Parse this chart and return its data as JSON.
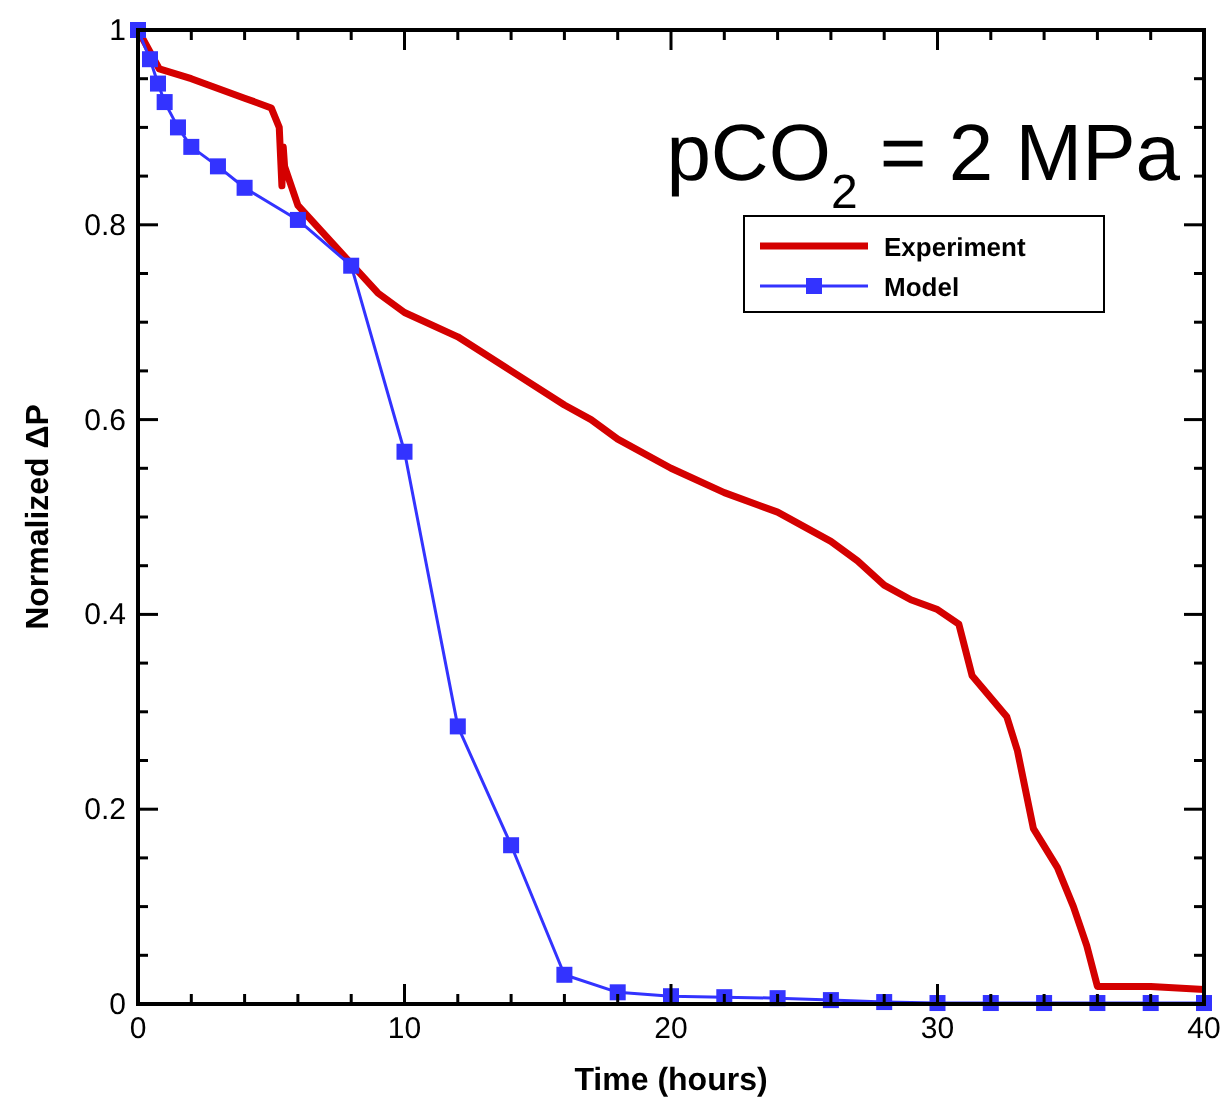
{
  "chart_data": {
    "type": "line",
    "title": "pCO$_{2}$ = 2 MPa",
    "xlabel": "Time (hours)",
    "ylabel": "Normalized ΔP",
    "xlim": [
      0,
      40
    ],
    "ylim": [
      0,
      1
    ],
    "xticks": [
      0,
      {
        "value": 2,
        "label": null
      },
      {
        "value": 4,
        "label": null
      },
      {
        "value": 6,
        "label": null
      },
      {
        "value": 8,
        "label": null
      },
      10,
      {
        "value": 12,
        "label": null
      },
      {
        "value": 14,
        "label": null
      },
      {
        "value": 16,
        "label": null
      },
      {
        "value": 18,
        "label": null
      },
      20,
      {
        "value": 22,
        "label": null
      },
      {
        "value": 24,
        "label": null
      },
      {
        "value": 26,
        "label": null
      },
      {
        "value": 28,
        "label": null
      },
      30,
      {
        "value": 32,
        "label": null
      },
      {
        "value": 34,
        "label": null
      },
      {
        "value": 36,
        "label": null
      },
      {
        "value": 38,
        "label": null
      },
      40
    ],
    "yticks": [
      0,
      {
        "value": 0.05,
        "label": null
      },
      {
        "value": 0.1,
        "label": null
      },
      {
        "value": 0.15,
        "label": null
      },
      0.2,
      {
        "value": 0.25,
        "label": null
      },
      {
        "value": 0.3,
        "label": null
      },
      {
        "value": 0.35,
        "label": null
      },
      0.4,
      {
        "value": 0.45,
        "label": null
      },
      {
        "value": 0.5,
        "label": null
      },
      {
        "value": 0.55,
        "label": null
      },
      0.6,
      {
        "value": 0.65,
        "label": null
      },
      {
        "value": 0.7,
        "label": null
      },
      {
        "value": 0.75,
        "label": null
      },
      0.8,
      {
        "value": 0.85,
        "label": null
      },
      {
        "value": 0.9,
        "label": null
      },
      {
        "value": 0.95,
        "label": null
      },
      1
    ],
    "legend": "top right",
    "grid": false,
    "series": [
      {
        "name": "Experiment",
        "color": "#d40000",
        "marker": "none",
        "line_style": "solid",
        "x": [
          0,
          0.8,
          2,
          4,
          5,
          5.3,
          5.4,
          5.45,
          5.5,
          6,
          8,
          9,
          10,
          12,
          14,
          16,
          17,
          18,
          20,
          22,
          24,
          26,
          27,
          28,
          29,
          30,
          30.8,
          31.3,
          32.6,
          33,
          33.6,
          34.5,
          35.1,
          35.6,
          36,
          38,
          40
        ],
        "values": [
          1,
          0.96,
          0.95,
          0.93,
          0.92,
          0.9,
          0.84,
          0.88,
          0.86,
          0.82,
          0.76,
          0.73,
          0.71,
          0.685,
          0.65,
          0.615,
          0.6,
          0.58,
          0.55,
          0.525,
          0.505,
          0.475,
          0.455,
          0.43,
          0.415,
          0.405,
          0.39,
          0.337,
          0.295,
          0.26,
          0.18,
          0.14,
          0.1,
          0.06,
          0.018,
          0.018,
          0.015
        ]
      },
      {
        "name": "Model",
        "color": "#3333ff",
        "marker": "square",
        "line_style": "solid",
        "x": [
          0,
          0.45,
          0.75,
          1,
          1.5,
          2,
          3,
          4,
          6,
          8,
          10,
          12,
          14,
          16,
          18,
          20,
          22,
          24,
          26,
          28,
          30,
          32,
          34,
          36,
          38,
          40
        ],
        "values": [
          1,
          0.97,
          0.945,
          0.926,
          0.9,
          0.88,
          0.86,
          0.838,
          0.805,
          0.758,
          0.567,
          0.285,
          0.163,
          0.03,
          0.012,
          0.008,
          0.007,
          0.006,
          0.004,
          0.002,
          0.001,
          0.001,
          0.001,
          0.001,
          0.001,
          0.001
        ]
      }
    ]
  }
}
